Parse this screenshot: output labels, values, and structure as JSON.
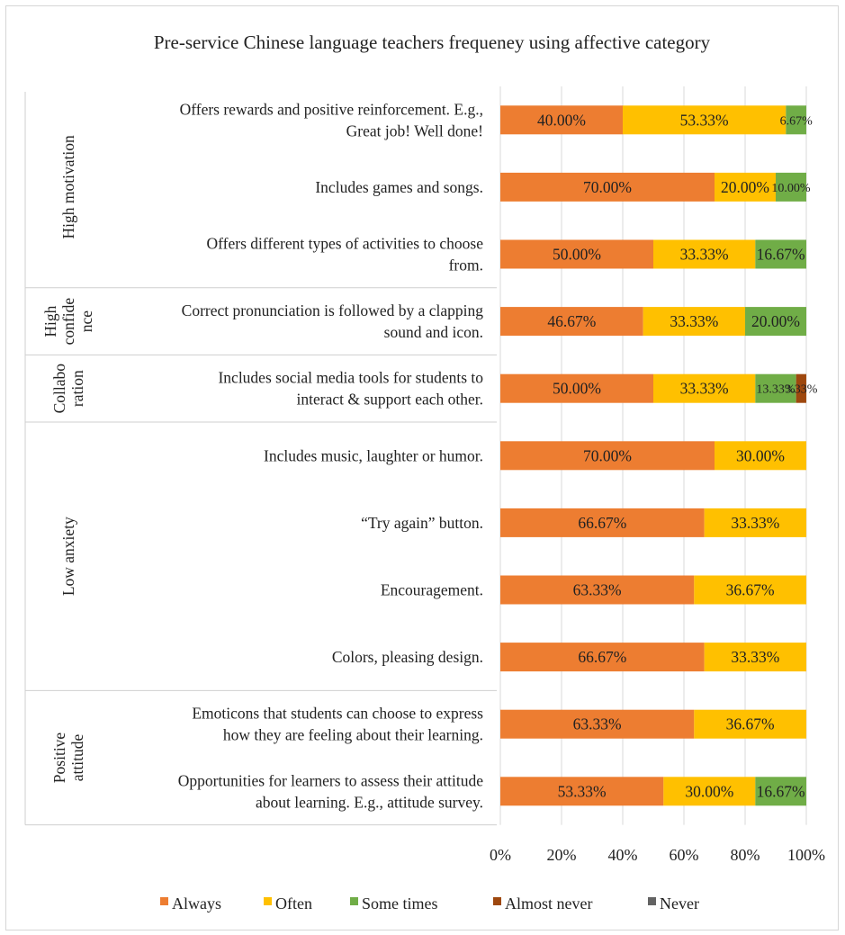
{
  "chart_data": {
    "type": "bar",
    "orientation": "horizontal",
    "stacked": true,
    "percent_stacked": true,
    "title": "Pre-service Chinese language teachers frequeney using affective category",
    "xlim": [
      0,
      100
    ],
    "x_ticks": [
      "0%",
      "20%",
      "40%",
      "60%",
      "80%",
      "100%"
    ],
    "grid": "vertical",
    "legend_position": "bottom",
    "groups": [
      {
        "label_lines": [
          "High motivation"
        ],
        "items": [
          0,
          1,
          2
        ]
      },
      {
        "label_lines": [
          "High",
          "confide",
          "nce"
        ],
        "items": [
          3
        ]
      },
      {
        "label_lines": [
          "Collabo",
          "ration"
        ],
        "items": [
          4
        ]
      },
      {
        "label_lines": [
          "Low anxiety"
        ],
        "items": [
          5,
          6,
          7,
          8
        ]
      },
      {
        "label_lines": [
          "Positive",
          "attitude"
        ],
        "items": [
          9,
          10
        ]
      }
    ],
    "categories": [
      [
        "Offers rewards and positive reinforcement. E.g.,",
        "Great job! Well done!"
      ],
      [
        "Includes games and songs."
      ],
      [
        "Offers different types of activities to choose",
        "from."
      ],
      [
        "Correct pronunciation is followed by a clapping",
        "sound and icon."
      ],
      [
        "Includes social media tools for students to",
        "interact & support each other."
      ],
      [
        "Includes music, laughter or humor."
      ],
      [
        "“Try again” button."
      ],
      [
        "Encouragement."
      ],
      [
        "Colors, pleasing design."
      ],
      [
        "Emoticons that students can choose to express",
        "how they are feeling about their learning."
      ],
      [
        "Opportunities for learners to assess their attitude",
        "about learning. E.g., attitude survey."
      ]
    ],
    "series": [
      {
        "name": "Always",
        "color": "#ED7D31",
        "values": [
          40.0,
          70.0,
          50.0,
          46.67,
          50.0,
          70.0,
          66.67,
          63.33,
          66.67,
          63.33,
          53.33
        ],
        "labels": [
          "40.00%",
          "70.00%",
          "50.00%",
          "46.67%",
          "50.00%",
          "70.00%",
          "66.67%",
          "63.33%",
          "66.67%",
          "63.33%",
          "53.33%"
        ]
      },
      {
        "name": "Often",
        "color": "#FFC000",
        "values": [
          53.33,
          20.0,
          33.33,
          33.33,
          33.33,
          30.0,
          33.33,
          36.67,
          33.33,
          36.67,
          30.0
        ],
        "labels": [
          "53.33%",
          "20.00%",
          "33.33%",
          "33.33%",
          "33.33%",
          "30.00%",
          "33.33%",
          "36.67%",
          "33.33%",
          "36.67%",
          "30.00%"
        ]
      },
      {
        "name": "Some times",
        "color": "#70AD47",
        "values": [
          6.67,
          10.0,
          16.67,
          20.0,
          13.33,
          0,
          0,
          0,
          0,
          0,
          16.67
        ],
        "labels": [
          "6.67%",
          "10.00%",
          "16.67%",
          "20.00%",
          "13.33%",
          "",
          "",
          "",
          "",
          "",
          "16.67%"
        ]
      },
      {
        "name": "Almost never",
        "color": "#9E480E",
        "values": [
          0,
          0,
          0,
          0,
          3.33,
          0,
          0,
          0,
          0,
          0,
          0
        ],
        "labels": [
          "",
          "",
          "",
          "",
          "3.33%",
          "",
          "",
          "",
          "",
          "",
          ""
        ]
      },
      {
        "name": "Never",
        "color": "#636363",
        "values": [
          0,
          0,
          0,
          0,
          0,
          0,
          0,
          0,
          0,
          0,
          0
        ],
        "labels": [
          "",
          "",
          "",
          "",
          "",
          "",
          "",
          "",
          "",
          "",
          ""
        ]
      }
    ]
  }
}
